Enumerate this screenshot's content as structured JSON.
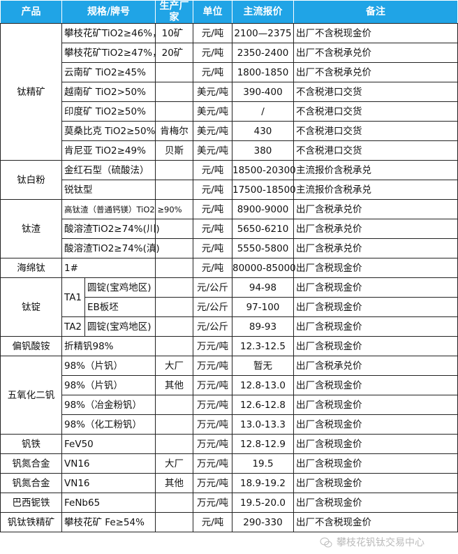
{
  "header": {
    "product": "产品",
    "spec": "规格/牌号",
    "maker": "生产厂家",
    "unit": "单位",
    "price": "主流报价",
    "note": "备注"
  },
  "accent_color": "#20a4e6",
  "groups": [
    {
      "product": "钛精矿",
      "rows": [
        {
          "spec": "攀枝花矿TiO2≥46%，10矿",
          "maker": "",
          "unit": "元/吨",
          "price": "2100—2375",
          "note": "出厂不含税现金价"
        },
        {
          "spec": "攀枝花矿TiO2≥47%，20矿",
          "maker": "",
          "unit": "元/吨",
          "price": "2350-2400",
          "note": "出厂不含税承兑价"
        },
        {
          "spec": "云南矿 TiO2≥45%",
          "maker": "",
          "unit": "元/吨",
          "price": "1800-1850",
          "note": "出厂不含税承兑价"
        },
        {
          "spec": "越南矿 TiO2>50%",
          "maker": "",
          "unit": "美元/吨",
          "price": "390-400",
          "note": "不含税港口交货"
        },
        {
          "spec": "印度矿 TiO2≥50%",
          "maker": "",
          "unit": "美元/吨",
          "price": "/",
          "note": "不含税港口交货"
        },
        {
          "spec": "莫桑比克 TiO2≥50%",
          "maker": "肯梅尔",
          "unit": "美元/吨",
          "price": "430",
          "note": "不含税港口交货"
        },
        {
          "spec": "肯尼亚 TiO2≥49%",
          "maker": "贝斯",
          "unit": "美元/吨",
          "price": "380",
          "note": "不含税港口交货"
        }
      ]
    },
    {
      "product": "钛白粉",
      "rows": [
        {
          "spec": "金红石型（硫酸法）",
          "maker": "",
          "unit": "元/吨",
          "price": "18500-20300",
          "note": "主流报价含税承兑"
        },
        {
          "spec": "锐钛型",
          "maker": "",
          "unit": "元/吨",
          "price": "17500-18500",
          "note": "主流报价含税承兑"
        }
      ]
    },
    {
      "product": "钛渣",
      "rows": [
        {
          "spec": "高钛渣（普通钙镁）TiO2 ≥90%",
          "small": true,
          "maker": "",
          "unit": "元/吨",
          "price": "8900-9000",
          "note": "出厂含税承兑价"
        },
        {
          "spec": "酸溶渣TiO2≥74%(川)",
          "maker": "",
          "unit": "元/吨",
          "price": "5650-6210",
          "note": "出厂含税承兑价"
        },
        {
          "spec": "酸溶渣TiO2≥74%(滇)",
          "maker": "",
          "unit": "元/吨",
          "price": "5550-5800",
          "note": "出厂含税承兑价"
        }
      ]
    },
    {
      "product": "海绵钛",
      "rows": [
        {
          "spec": "1#",
          "maker": "",
          "unit": "元/吨",
          "price": "80000-85000",
          "note": "出厂含税现金价"
        }
      ]
    },
    {
      "product": "钛锭",
      "rows": [
        {
          "spec": "TA1",
          "span": 2,
          "sub": "圆锭(宝鸡地区)",
          "maker": "",
          "unit": "元/公斤",
          "price": "94-98",
          "note": "出厂含税现金价"
        },
        {
          "sub": "EB板坯",
          "maker": "",
          "unit": "元/公斤",
          "price": "97-100",
          "note": "出厂含税现金价"
        },
        {
          "spec": "TA2",
          "span": 1,
          "sub": "圆锭(宝鸡地区)",
          "maker": "",
          "unit": "元/公斤",
          "price": "89-93",
          "note": "出厂含税现金价"
        }
      ]
    },
    {
      "product": "偏钒酸铵",
      "rows": [
        {
          "spec": "折精钒98%",
          "maker": "",
          "unit": "万元/吨",
          "price": "12.3-12.5",
          "note": "出厂含税现金价"
        }
      ]
    },
    {
      "product": "五氧化二钒",
      "rows": [
        {
          "spec": "98%（片钒）",
          "maker": "大厂",
          "unit": "万元/吨",
          "price": "暂无",
          "note": "出厂含税承兑价"
        },
        {
          "spec": "98%（片钒）",
          "maker": "其他",
          "unit": "万元/吨",
          "price": "12.8-13.0",
          "note": "出厂含税现金价"
        },
        {
          "spec": "98%（冶金粉钒）",
          "maker": "",
          "unit": "万元/吨",
          "price": "12.6-12.8",
          "note": "出厂含税现金价"
        },
        {
          "spec": "98%（化工粉钒）",
          "maker": "",
          "unit": "万元/吨",
          "price": "13.0-13.3",
          "note": "出厂含税现金价"
        }
      ]
    },
    {
      "product": "钒铁",
      "rows": [
        {
          "spec": "FeV50",
          "maker": "",
          "unit": "万元/吨",
          "price": "12.8-12.9",
          "note": "出厂含税现金价"
        }
      ]
    },
    {
      "product": "钒氮合金",
      "rows": [
        {
          "spec": "VN16",
          "maker": "大厂",
          "unit": "万元/吨",
          "price": "19.5",
          "note": "出厂含税现金价"
        }
      ]
    },
    {
      "product": "钒氮合金",
      "rows": [
        {
          "spec": "VN16",
          "maker": "其他",
          "unit": "万元/吨",
          "price": "18.9-19.2",
          "note": "出厂含税现金价"
        }
      ]
    },
    {
      "product": "巴西铌铁",
      "rows": [
        {
          "spec": "FeNb65",
          "maker": "",
          "unit": "万元/吨",
          "price": "19.5-20.0",
          "note": "出厂含税现金价"
        }
      ]
    },
    {
      "product": "钒钛铁精矿",
      "rows": [
        {
          "spec": "攀枝花矿 Fe≥54%",
          "maker": "",
          "unit": "元/吨",
          "price": "290-330",
          "note": "出厂不含税现金价"
        }
      ]
    }
  ],
  "watermark": "攀枝花钒钛交易中心"
}
